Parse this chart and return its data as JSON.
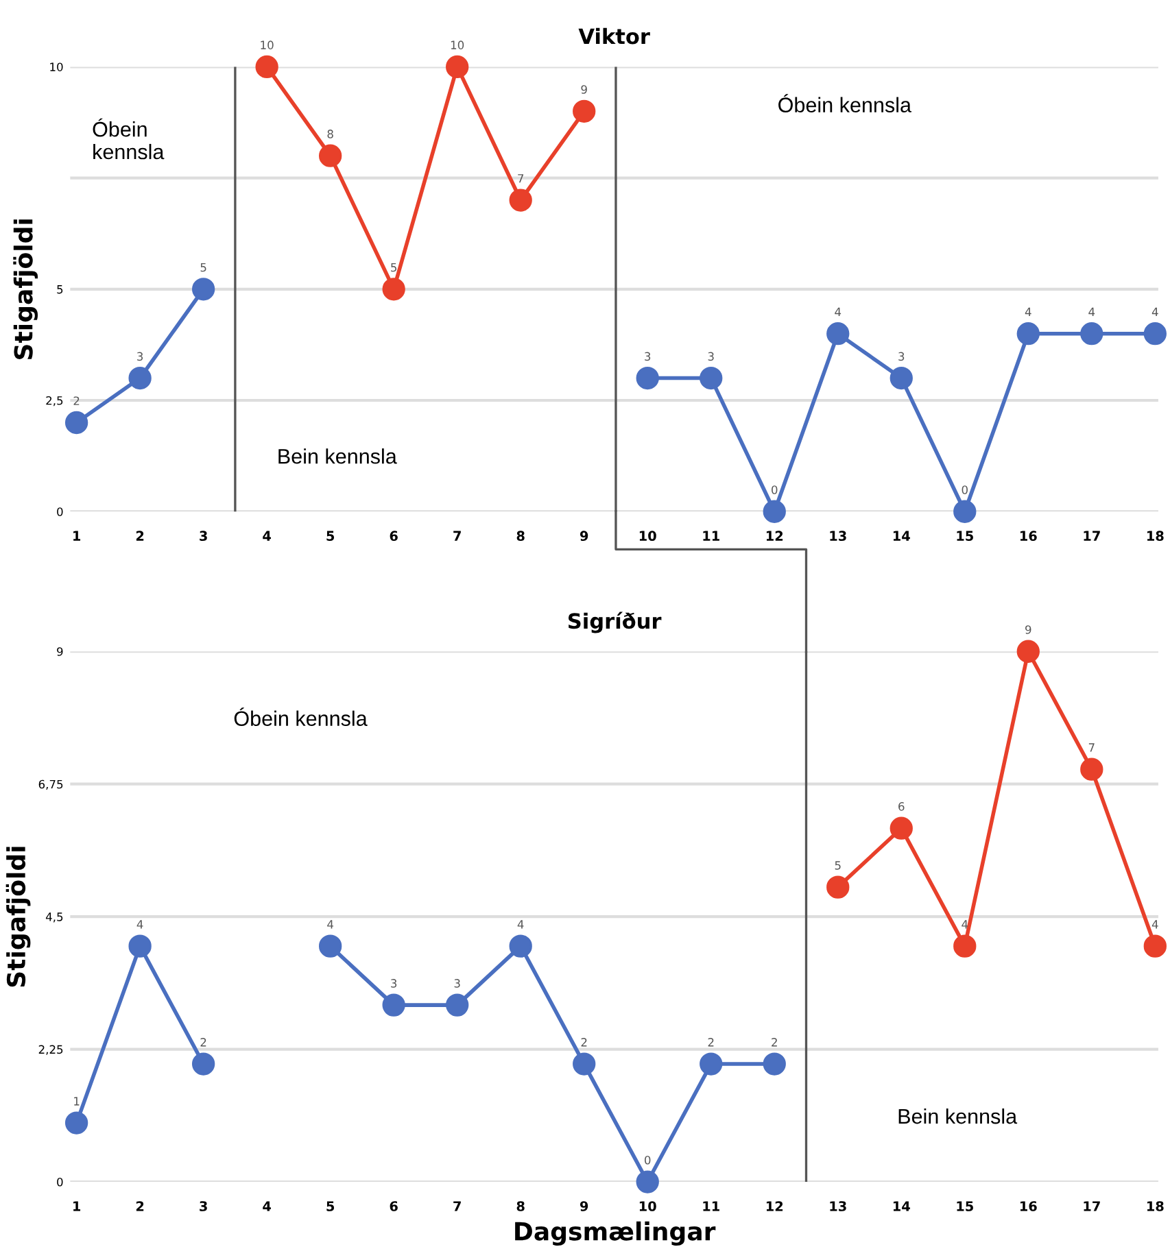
{
  "chart_data": [
    {
      "type": "line",
      "title": "Viktor",
      "ylabel": "Stigafjöldi",
      "x": [
        1,
        2,
        3,
        4,
        5,
        6,
        7,
        8,
        9,
        10,
        11,
        12,
        13,
        14,
        15,
        16,
        17,
        18
      ],
      "series": [
        {
          "color": "#4a6fc0",
          "values": [
            2,
            3,
            5,
            null,
            null,
            null,
            null,
            null,
            null,
            3,
            3,
            0,
            4,
            3,
            0,
            4,
            4,
            4
          ]
        },
        {
          "color": "#e8402a",
          "values": [
            null,
            null,
            null,
            10,
            8,
            5,
            10,
            7,
            9,
            null,
            null,
            null,
            null,
            null,
            null,
            null,
            null,
            null
          ]
        }
      ],
      "xlim": [
        0.9,
        18.05
      ],
      "xticks": [
        1,
        2,
        3,
        4,
        5,
        6,
        7,
        8,
        9,
        10,
        11,
        12,
        13,
        14,
        15,
        16,
        17,
        18
      ],
      "ylim": [
        0,
        10
      ],
      "yticks": [
        0,
        {
          "value": 2.5,
          "label": "2,5"
        },
        5,
        {
          "value": 7.5,
          "label": null
        },
        10
      ],
      "ref_lines": [
        {
          "axis": "x",
          "value": 3.5,
          "color": "#555555"
        },
        {
          "axis": "x",
          "value": 9.5,
          "color": "#555555"
        }
      ],
      "annotations": [
        "Óbein\nkennsla",
        "Bein kennsla",
        "Óbein kennsla"
      ],
      "grid": "y",
      "marker": "circle",
      "line_style": "solid",
      "data_labels": true,
      "legend": false
    },
    {
      "type": "line",
      "title": "Sigríður",
      "ylabel": "Stigafjöldi",
      "xlabel": "Dagsmælingar",
      "x": [
        1,
        2,
        3,
        4,
        5,
        6,
        7,
        8,
        9,
        10,
        11,
        12,
        13,
        14,
        15,
        16,
        17,
        18
      ],
      "series": [
        {
          "color": "#4a6fc0",
          "values": [
            1,
            4,
            2,
            null,
            4,
            3,
            3,
            4,
            2,
            0,
            2,
            2,
            null,
            null,
            null,
            null,
            null,
            null
          ]
        },
        {
          "color": "#e8402a",
          "values": [
            null,
            null,
            null,
            null,
            null,
            null,
            null,
            null,
            null,
            null,
            null,
            null,
            5,
            6,
            4,
            9,
            7,
            4
          ]
        }
      ],
      "xlim": [
        0.9,
        18.05
      ],
      "xticks": [
        1,
        2,
        3,
        4,
        5,
        6,
        7,
        8,
        9,
        10,
        11,
        12,
        13,
        14,
        15,
        16,
        17,
        18
      ],
      "ylim": [
        0,
        9
      ],
      "yticks": [
        0,
        {
          "value": 2.25,
          "label": "2,25"
        },
        {
          "value": 4.5,
          "label": "4,5"
        },
        {
          "value": 6.75,
          "label": "6,75"
        },
        9
      ],
      "ref_lines": [
        {
          "axis": "x",
          "value": 12.5,
          "color": "#555555"
        }
      ],
      "annotations": [
        "Óbein kennsla",
        "Bein kennsla"
      ],
      "grid": "y",
      "marker": "circle",
      "line_style": "solid",
      "data_labels": true,
      "legend": false
    }
  ]
}
